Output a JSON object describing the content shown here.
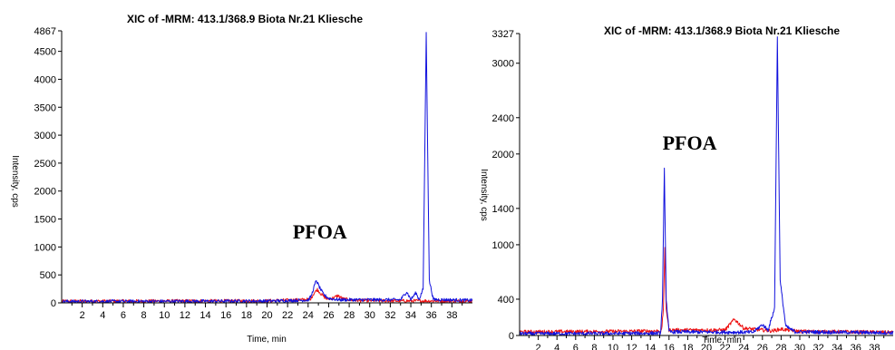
{
  "chart_data": [
    {
      "type": "line",
      "title": "XIC of -MRM: 413.1/368.9 Biota Nr.21 Kliesche",
      "xlabel": "Time, min",
      "ylabel": "Intensity, cps",
      "xlim": [
        0,
        40
      ],
      "ylim": [
        0,
        4867
      ],
      "x_ticks": [
        2,
        4,
        6,
        8,
        10,
        12,
        14,
        16,
        18,
        20,
        22,
        24,
        26,
        28,
        30,
        32,
        34,
        36,
        38
      ],
      "y_ticks": [
        0,
        500,
        1000,
        1500,
        2000,
        2500,
        3000,
        3500,
        4000,
        4500,
        4867
      ],
      "annotations": [
        {
          "text": "PFOA",
          "x": 22.5,
          "y": 1150
        }
      ],
      "series": [
        {
          "color": "#ee1111",
          "points": [
            [
              0,
              30
            ],
            [
              10,
              33
            ],
            [
              20,
              36
            ],
            [
              24.2,
              60
            ],
            [
              24.6,
              180
            ],
            [
              24.9,
              240
            ],
            [
              25.3,
              150
            ],
            [
              25.8,
              70
            ],
            [
              26.5,
              90
            ],
            [
              26.9,
              130
            ],
            [
              27.4,
              70
            ],
            [
              28.5,
              45
            ],
            [
              32,
              35
            ],
            [
              36,
              35
            ],
            [
              40,
              30
            ]
          ]
        },
        {
          "color": "#1111dd",
          "points": [
            [
              0,
              25
            ],
            [
              10,
              28
            ],
            [
              20,
              32
            ],
            [
              24,
              50
            ],
            [
              24.3,
              120
            ],
            [
              24.6,
              300
            ],
            [
              24.8,
              400
            ],
            [
              25.1,
              280
            ],
            [
              25.5,
              150
            ],
            [
              26,
              80
            ],
            [
              27,
              55
            ],
            [
              33,
              55
            ],
            [
              33.6,
              200
            ],
            [
              34,
              60
            ],
            [
              34.5,
              180
            ],
            [
              34.8,
              60
            ],
            [
              35.2,
              250
            ],
            [
              35.5,
              4820
            ],
            [
              35.8,
              400
            ],
            [
              36.2,
              60
            ],
            [
              40,
              45
            ]
          ]
        }
      ]
    },
    {
      "type": "line",
      "title": "XIC of -MRM: 413.1/368.9 Biota Nr.21 Kliesche",
      "xlabel": "Time, min",
      "ylabel": "Intensity, cps",
      "xlim": [
        0,
        40
      ],
      "ylim": [
        0,
        3327
      ],
      "x_ticks": [
        2,
        4,
        6,
        8,
        10,
        12,
        14,
        16,
        18,
        20,
        22,
        24,
        26,
        28,
        30,
        32,
        34,
        36,
        38
      ],
      "y_ticks": [
        0,
        400,
        1000,
        1400,
        2000,
        2400,
        3000,
        3327
      ],
      "annotations": [
        {
          "text": "PFOA",
          "x": 15.3,
          "y": 2050
        }
      ],
      "series": [
        {
          "color": "#ee1111",
          "points": [
            [
              0,
              40
            ],
            [
              10,
              45
            ],
            [
              15.2,
              50
            ],
            [
              15.4,
              300
            ],
            [
              15.55,
              950
            ],
            [
              15.7,
              300
            ],
            [
              16,
              60
            ],
            [
              22,
              60
            ],
            [
              23,
              180
            ],
            [
              24,
              80
            ],
            [
              26,
              60
            ],
            [
              27,
              50
            ],
            [
              28,
              70
            ],
            [
              30,
              45
            ],
            [
              40,
              35
            ]
          ]
        },
        {
          "color": "#1111dd",
          "points": [
            [
              0,
              20
            ],
            [
              10,
              22
            ],
            [
              15.1,
              25
            ],
            [
              15.3,
              400
            ],
            [
              15.5,
              1830
            ],
            [
              15.7,
              400
            ],
            [
              16,
              40
            ],
            [
              25,
              35
            ],
            [
              26,
              120
            ],
            [
              26.6,
              60
            ],
            [
              27.3,
              300
            ],
            [
              27.6,
              3280
            ],
            [
              27.9,
              600
            ],
            [
              28.5,
              100
            ],
            [
              29.5,
              40
            ],
            [
              40,
              30
            ]
          ]
        }
      ]
    }
  ]
}
